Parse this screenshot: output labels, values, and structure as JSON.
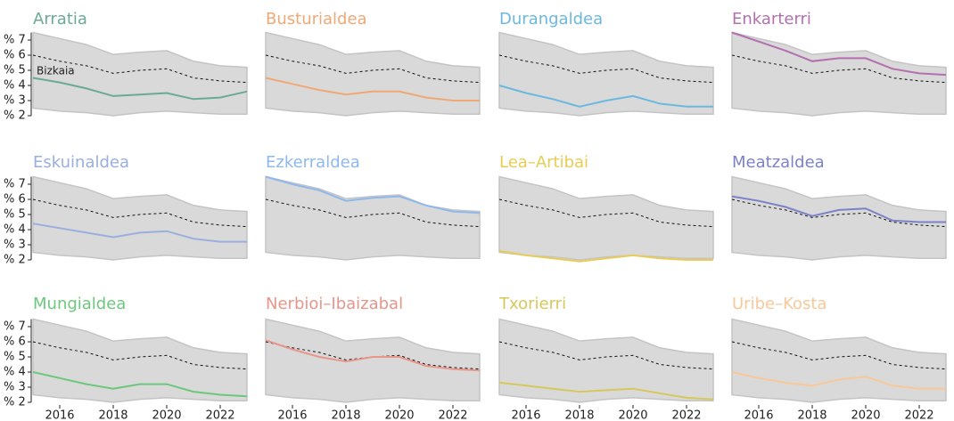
{
  "chart_data": {
    "type": "line",
    "x": [
      2015,
      2016,
      2017,
      2018,
      2019,
      2020,
      2021,
      2022,
      2023
    ],
    "xlim": [
      2015,
      2023
    ],
    "xticks": [
      2016,
      2018,
      2020,
      2022
    ],
    "ylim": [
      2,
      7.5
    ],
    "yticks": [
      {
        "value": 2,
        "label": "% 2"
      },
      {
        "value": 3,
        "label": "% 3"
      },
      {
        "value": 4,
        "label": "% 4"
      },
      {
        "value": 5,
        "label": "% 5"
      },
      {
        "value": 6,
        "label": "% 6"
      },
      {
        "value": 7,
        "label": "% 7"
      }
    ],
    "range": {
      "color": "#d9d9d9",
      "upper": [
        7.5,
        7.1,
        6.7,
        6.05,
        6.2,
        6.3,
        5.6,
        5.3,
        5.2
      ],
      "lower": [
        2.5,
        2.3,
        2.2,
        2.0,
        2.2,
        2.3,
        2.2,
        2.1,
        2.1
      ]
    },
    "reference": {
      "name": "Bizkaia",
      "values": [
        6.0,
        5.6,
        5.3,
        4.8,
        5.0,
        5.1,
        4.5,
        4.3,
        4.2
      ]
    },
    "series": [
      {
        "name": "Arratia",
        "color": "#6aaa96",
        "values": [
          4.5,
          4.2,
          3.8,
          3.3,
          3.4,
          3.5,
          3.1,
          3.2,
          3.6
        ]
      },
      {
        "name": "Busturialdea",
        "color": "#f0a875",
        "values": [
          4.5,
          4.1,
          3.7,
          3.4,
          3.6,
          3.6,
          3.2,
          3.0,
          3.0
        ]
      },
      {
        "name": "Durangaldea",
        "color": "#6bb8e0",
        "values": [
          4.0,
          3.5,
          3.1,
          2.6,
          3.0,
          3.3,
          2.8,
          2.6,
          2.6
        ]
      },
      {
        "name": "Enkarterri",
        "color": "#b46fb0",
        "values": [
          7.5,
          6.9,
          6.3,
          5.6,
          5.8,
          5.8,
          5.1,
          4.8,
          4.7
        ]
      },
      {
        "name": "Eskuinaldea",
        "color": "#9aaee0",
        "values": [
          4.4,
          4.1,
          3.8,
          3.5,
          3.8,
          3.9,
          3.4,
          3.2,
          3.2
        ]
      },
      {
        "name": "Ezkerraldea",
        "color": "#8fb8ec",
        "values": [
          7.5,
          7.0,
          6.6,
          5.9,
          6.1,
          6.2,
          5.6,
          5.2,
          5.1
        ]
      },
      {
        "name": "Lea–Artibai",
        "color": "#e8cc55",
        "values": [
          2.6,
          2.3,
          2.1,
          1.9,
          2.1,
          2.3,
          2.1,
          2.0,
          2.0
        ]
      },
      {
        "name": "Meatzaldea",
        "color": "#7d82c8",
        "values": [
          6.2,
          5.9,
          5.5,
          4.9,
          5.3,
          5.4,
          4.6,
          4.5,
          4.5
        ]
      },
      {
        "name": "Mungialdea",
        "color": "#6cc87c",
        "values": [
          4.0,
          3.6,
          3.2,
          2.9,
          3.2,
          3.2,
          2.7,
          2.5,
          2.4
        ]
      },
      {
        "name": "Nerbioi–Ibaizabal",
        "color": "#e8958a",
        "values": [
          6.1,
          5.5,
          5.0,
          4.7,
          5.0,
          5.0,
          4.4,
          4.2,
          4.1
        ]
      },
      {
        "name": "Txorierri",
        "color": "#d6c85a",
        "values": [
          3.3,
          3.1,
          2.9,
          2.7,
          2.8,
          2.9,
          2.6,
          2.3,
          2.2
        ]
      },
      {
        "name": "Uribe–Kosta",
        "color": "#f8c898",
        "values": [
          4.0,
          3.6,
          3.3,
          3.1,
          3.5,
          3.7,
          3.1,
          2.9,
          2.9
        ]
      }
    ]
  }
}
